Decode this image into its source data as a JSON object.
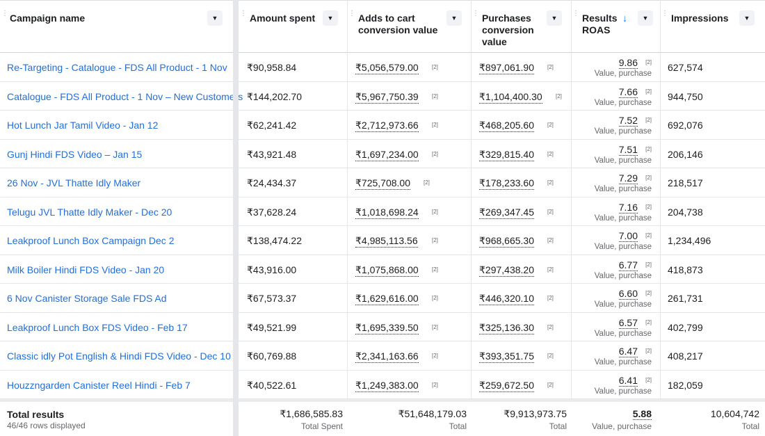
{
  "headers": [
    {
      "label": "Campaign name"
    },
    {
      "label": "Amount spent"
    },
    {
      "label": "Adds to cart\nconversion value"
    },
    {
      "label": "Purchases\nconversion\nvalue"
    },
    {
      "label": "Results\nROAS"
    },
    {
      "label": "Impressions"
    }
  ],
  "badge": "[2]",
  "roas_sub": "Value, purchase",
  "rows": [
    {
      "name": "Re-Targeting - Catalogue - FDS All Product - 1 Nov",
      "spent": "₹90,958.84",
      "atc": "₹5,056,579.00",
      "purch": "₹897,061.90",
      "roas": "9.86",
      "impr": "627,574"
    },
    {
      "name": "Catalogue - FDS All Product - 1 Nov – New Customers",
      "spent": "₹144,202.70",
      "atc": "₹5,967,750.39",
      "purch": "₹1,104,400.30",
      "roas": "7.66",
      "impr": "944,750"
    },
    {
      "name": "Hot Lunch Jar Tamil Video - Jan 12",
      "spent": "₹62,241.42",
      "atc": "₹2,712,973.66",
      "purch": "₹468,205.60",
      "roas": "7.52",
      "impr": "692,076"
    },
    {
      "name": "Gunj Hindi FDS Video – Jan 15",
      "spent": "₹43,921.48",
      "atc": "₹1,697,234.00",
      "purch": "₹329,815.40",
      "roas": "7.51",
      "impr": "206,146"
    },
    {
      "name": "26 Nov - JVL Thatte Idly Maker",
      "spent": "₹24,434.37",
      "atc": "₹725,708.00",
      "purch": "₹178,233.60",
      "roas": "7.29",
      "impr": "218,517"
    },
    {
      "name": "Telugu JVL Thatte Idly Maker - Dec 20",
      "spent": "₹37,628.24",
      "atc": "₹1,018,698.24",
      "purch": "₹269,347.45",
      "roas": "7.16",
      "impr": "204,738"
    },
    {
      "name": "Leakproof Lunch Box Campaign Dec 2",
      "spent": "₹138,474.22",
      "atc": "₹4,985,113.56",
      "purch": "₹968,665.30",
      "roas": "7.00",
      "impr": "1,234,496"
    },
    {
      "name": "Milk Boiler Hindi FDS Video - Jan 20",
      "spent": "₹43,916.00",
      "atc": "₹1,075,868.00",
      "purch": "₹297,438.20",
      "roas": "6.77",
      "impr": "418,873"
    },
    {
      "name": "6 Nov Canister Storage Sale FDS Ad",
      "spent": "₹67,573.37",
      "atc": "₹1,629,616.00",
      "purch": "₹446,320.10",
      "roas": "6.60",
      "impr": "261,731"
    },
    {
      "name": "Leakproof Lunch Box FDS Video - Feb 17",
      "spent": "₹49,521.99",
      "atc": "₹1,695,339.50",
      "purch": "₹325,136.30",
      "roas": "6.57",
      "impr": "402,799"
    },
    {
      "name": "Classic idly Pot English & Hindi FDS Video - Dec 10",
      "spent": "₹60,769.88",
      "atc": "₹2,341,163.66",
      "purch": "₹393,351.75",
      "roas": "6.47",
      "impr": "408,217"
    },
    {
      "name": "Houzzngarden Canister Reel Hindi - Feb 7",
      "spent": "₹40,522.61",
      "atc": "₹1,249,383.00",
      "purch": "₹259,672.50",
      "roas": "6.41",
      "impr": "182,059"
    }
  ],
  "footer": {
    "title": "Total results",
    "subtitle": "46/46 rows displayed",
    "spent": "₹1,686,585.83",
    "spent_label": "Total Spent",
    "atc": "₹51,648,179.03",
    "atc_label": "Total",
    "purch": "₹9,913,973.75",
    "purch_label": "Total",
    "roas": "5.88",
    "roas_label": "Value, purchase",
    "impr": "10,604,742",
    "impr_label": "Total"
  },
  "icons": {
    "dropdown": "triangle-down-icon",
    "sort": "arrow-down-icon",
    "drag": "drag-handle-icon"
  }
}
